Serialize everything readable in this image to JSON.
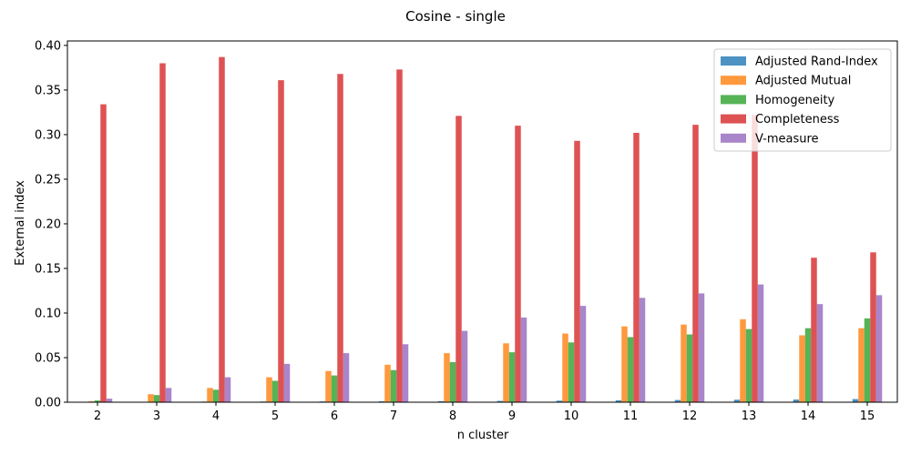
{
  "chart_data": {
    "type": "bar",
    "title": "Cosine - single",
    "xlabel": "n cluster",
    "ylabel": "External index",
    "ylim": [
      0,
      0.405
    ],
    "yticks": [
      "0.00",
      "0.05",
      "0.10",
      "0.15",
      "0.20",
      "0.25",
      "0.30",
      "0.35",
      "0.40"
    ],
    "categories": [
      "2",
      "3",
      "4",
      "5",
      "6",
      "7",
      "8",
      "9",
      "10",
      "11",
      "12",
      "13",
      "14",
      "15"
    ],
    "legend_position": "top-right",
    "grid": false,
    "series": [
      {
        "name": "Adjusted Rand-Index",
        "color": "#1f77b4",
        "values": [
          0.0003,
          0.0005,
          0.0007,
          0.0008,
          0.0009,
          0.001,
          0.0012,
          0.0015,
          0.0018,
          0.0022,
          0.0025,
          0.0028,
          0.003,
          0.0035
        ]
      },
      {
        "name": "Adjusted Mutual",
        "color": "#ff7f0e",
        "values": [
          0.001,
          0.009,
          0.016,
          0.028,
          0.035,
          0.042,
          0.055,
          0.066,
          0.077,
          0.085,
          0.087,
          0.093,
          0.075,
          0.083
        ]
      },
      {
        "name": "Homogeneity",
        "color": "#2ca02c",
        "values": [
          0.002,
          0.008,
          0.014,
          0.024,
          0.03,
          0.036,
          0.045,
          0.056,
          0.067,
          0.073,
          0.076,
          0.082,
          0.083,
          0.094
        ]
      },
      {
        "name": "Completeness",
        "color": "#d62728",
        "values": [
          0.334,
          0.38,
          0.387,
          0.361,
          0.368,
          0.373,
          0.321,
          0.31,
          0.293,
          0.302,
          0.311,
          0.322,
          0.162,
          0.168
        ]
      },
      {
        "name": "V-measure",
        "color": "#9467bd",
        "values": [
          0.004,
          0.016,
          0.028,
          0.043,
          0.055,
          0.065,
          0.08,
          0.095,
          0.108,
          0.117,
          0.122,
          0.132,
          0.11,
          0.12
        ]
      }
    ]
  }
}
